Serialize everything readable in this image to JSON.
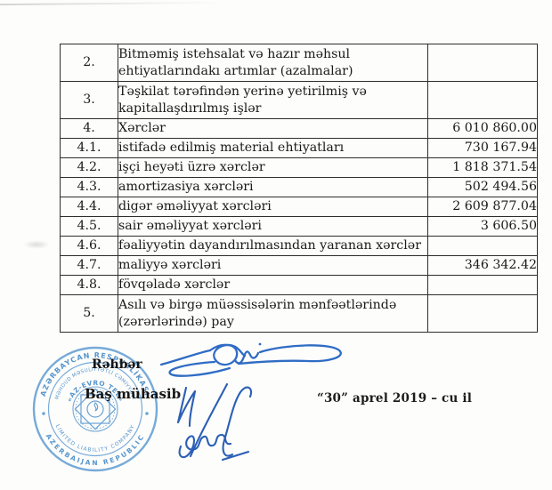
{
  "table": {
    "rows": [
      {
        "num": "2.",
        "desc": "Bitməmiş istehsalat və hazır məhsul ehtiyatlarındakı artımlar (azalmalar)",
        "value": "",
        "tall": true
      },
      {
        "num": "3.",
        "desc": "Təşkilat tərəfindən yerinə yetirilmiş və kapitallaşdırılmış işlər",
        "value": "",
        "tall": true
      },
      {
        "num": "4.",
        "desc": "Xərclər",
        "value": "6 010 860.00",
        "tall": false
      },
      {
        "num": "4.1.",
        "desc": "istifadə edilmiş material ehtiyatları",
        "value": "730 167.94",
        "tall": false
      },
      {
        "num": "4.2.",
        "desc": "işçi heyəti üzrə xərclər",
        "value": "1 818 371.54",
        "tall": false
      },
      {
        "num": "4.3.",
        "desc": "amortizasiya xərcləri",
        "value": "502 494.56",
        "tall": false
      },
      {
        "num": "4.4.",
        "desc": "digər əməliyyat xərcləri",
        "value": "2 609 877.04",
        "tall": false
      },
      {
        "num": "4.5.",
        "desc": "sair əməliyyat xərcləri",
        "value": "3 606.50",
        "tall": false
      },
      {
        "num": "4.6.",
        "desc": "fəaliyyətin dayandırılmasından yaranan xərclər",
        "value": "",
        "tall": false
      },
      {
        "num": "4.7.",
        "desc": "maliyyə xərcləri",
        "value": "346 342.42",
        "tall": false
      },
      {
        "num": "4.8.",
        "desc": "fövqəladə xərclər",
        "value": "",
        "tall": false
      },
      {
        "num": "5.",
        "desc": "Asılı və birgə müəssisələrin mənfəətlərində (zərərlərində) pay",
        "value": "",
        "tall": true
      }
    ]
  },
  "signatures": {
    "director_label": "Rəhbər",
    "accountant_label": "Baş mühasib",
    "date_text": "“30” aprel 2019 – cu il"
  },
  "stamp": {
    "outer_top": "AZƏRBAYCAN RESPUBLİKASI",
    "outer_bottom": "AZERBAIJAN REPUBLIC",
    "middle_top": "MƏHDUD MƏSULİYYƏTLİ CƏMİYYƏTİ",
    "middle_bottom": "LIMITED LIABILITY COMPANY",
    "company": "«AZ-EVRO TEL»",
    "ink_color": "#5e9fd4"
  },
  "colors": {
    "table_border": "#2e2d2b",
    "text": "#1a1a1a",
    "signature_ink": "#2f6cc4",
    "stamp_ink": "#5e9fd4"
  }
}
